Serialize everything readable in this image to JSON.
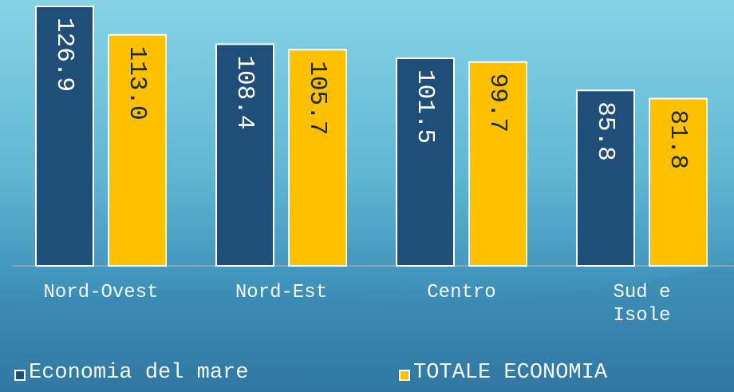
{
  "chart_data": {
    "type": "bar",
    "categories": [
      "Nord-Ovest",
      "Nord-Est",
      "Centro",
      "Sud e\nIsole"
    ],
    "series": [
      {
        "name": "Economia del mare",
        "color": "#1f4e79",
        "values": [
          126.9,
          108.4,
          101.5,
          85.8
        ],
        "value_labels": [
          "126.9",
          "108.4",
          "101.5",
          "85.8"
        ]
      },
      {
        "name": "TOTALE ECONOMIA",
        "color": "#ffc000",
        "values": [
          113.0,
          105.7,
          99.7,
          81.8
        ],
        "value_labels": [
          "113.0",
          "105.7",
          "99.7",
          "81.8"
        ]
      }
    ]
  }
}
